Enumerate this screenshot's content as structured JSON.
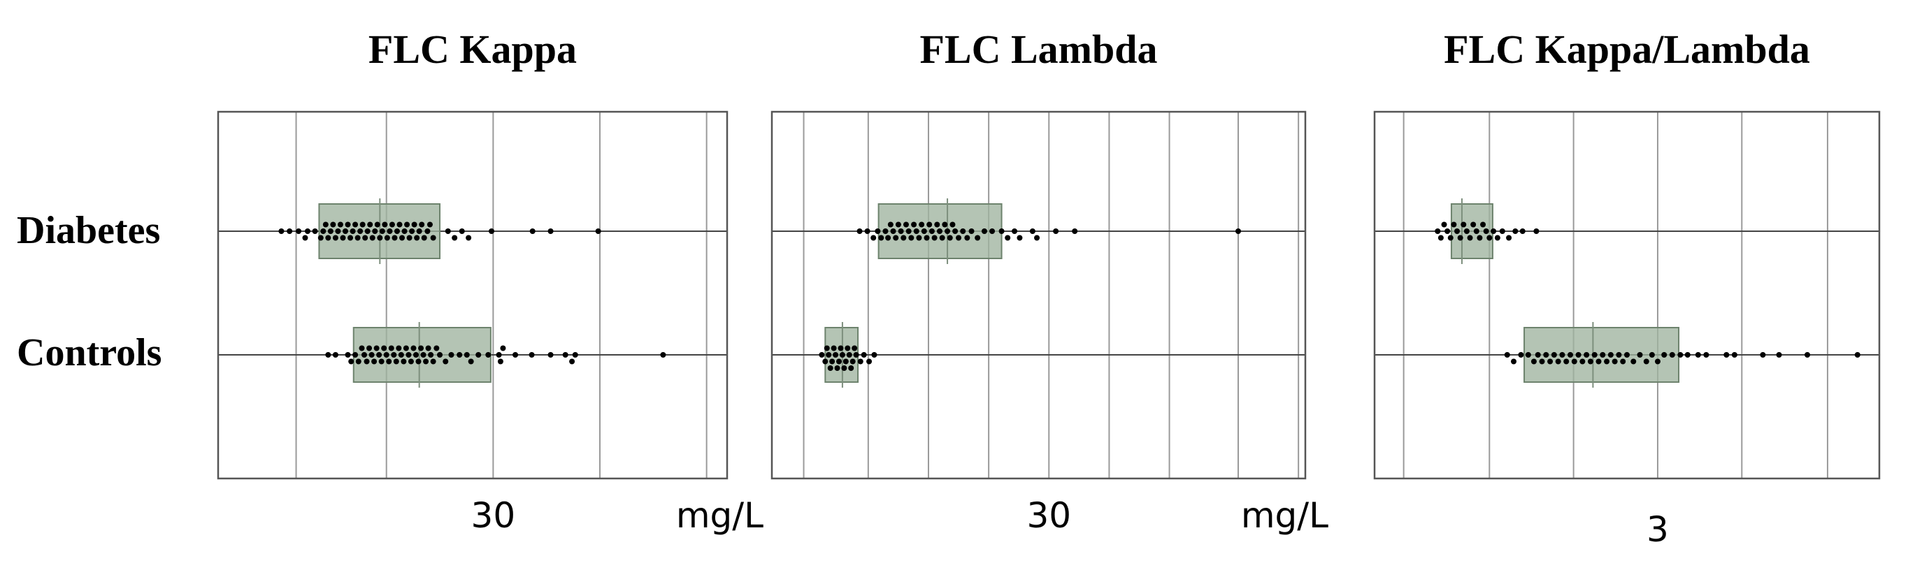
{
  "groups": [
    "Diabetes",
    "Controls"
  ],
  "chart_data": [
    {
      "type": "scatter",
      "title": "FLC Kappa",
      "unit": "mg/L",
      "tick_labels": [
        {
          "value": 30,
          "text": "30"
        }
      ],
      "xlim": [
        -3.5,
        58.5
      ],
      "gridlines": [
        6,
        17,
        30,
        43,
        56
      ],
      "grid": true,
      "series": [
        {
          "name": "Diabetes",
          "q1": 8.8,
          "median": 16.2,
          "q3": 23.5,
          "values": [
            4.2,
            5.2,
            6.3,
            7.1,
            7.4,
            8.3,
            9,
            9.3,
            9.6,
            9.9,
            10.2,
            10.5,
            10.8,
            11.1,
            11.4,
            11.7,
            12,
            12.3,
            12.6,
            12.9,
            13.2,
            13.5,
            13.8,
            14.1,
            14.4,
            14.7,
            15,
            15.3,
            15.6,
            15.9,
            16.2,
            16.5,
            16.8,
            17.1,
            17.4,
            17.7,
            18,
            18.3,
            18.6,
            18.9,
            19.2,
            19.5,
            19.8,
            20.1,
            20.4,
            20.7,
            21,
            21.3,
            21.6,
            22,
            22.3,
            22.7,
            24.5,
            25.3,
            26.2,
            27,
            29.8,
            34.8,
            37,
            42.8
          ]
        },
        {
          "name": "Controls",
          "q1": 13,
          "median": 21,
          "q3": 29.7,
          "values": [
            9.9,
            10.8,
            12.3,
            12.7,
            13.2,
            13.6,
            14,
            14.3,
            14.6,
            14.9,
            15.2,
            15.5,
            15.8,
            16.1,
            16.4,
            16.7,
            17,
            17.3,
            17.6,
            17.9,
            18.2,
            18.5,
            18.8,
            19.1,
            19.4,
            19.7,
            20,
            20.3,
            20.6,
            20.9,
            21.2,
            21.5,
            21.8,
            22.1,
            22.4,
            22.7,
            23.1,
            23.5,
            24.2,
            24.9,
            25.9,
            26.8,
            27.3,
            28.2,
            29.4,
            30.7,
            30.9,
            31.2,
            32.7,
            34.7,
            37,
            38.8,
            39.6,
            40,
            50.7
          ]
        }
      ]
    },
    {
      "type": "scatter",
      "title": "FLC Lambda",
      "unit": "mg/L",
      "tick_labels": [
        {
          "value": 30,
          "text": "30"
        }
      ],
      "xlim": [
        -2.2,
        59.8
      ],
      "gridlines": [
        1.5,
        9,
        16,
        23,
        30,
        37,
        44,
        52,
        59
      ],
      "grid": true,
      "series": [
        {
          "name": "Diabetes",
          "q1": 10.2,
          "median": 18.2,
          "q3": 24.5,
          "values": [
            8,
            8.9,
            9.6,
            10.1,
            10.5,
            11,
            11.3,
            11.6,
            11.9,
            12.2,
            12.5,
            12.8,
            13.1,
            13.4,
            13.7,
            14,
            14.3,
            14.6,
            14.9,
            15.2,
            15.5,
            15.8,
            16.1,
            16.4,
            16.7,
            17,
            17.3,
            17.6,
            17.9,
            18.2,
            18.5,
            18.8,
            19.1,
            19.5,
            20,
            20.5,
            21,
            21.7,
            22.5,
            23.4,
            24.5,
            25.2,
            26,
            26.6,
            28.1,
            28.6,
            30.8,
            33,
            52
          ]
        },
        {
          "name": "Controls",
          "q1": 4,
          "median": 6,
          "q3": 7.8,
          "values": [
            3.6,
            4,
            4.2,
            4.4,
            4.6,
            4.8,
            5,
            5.2,
            5.4,
            5.6,
            5.8,
            6,
            6.2,
            6.4,
            6.6,
            6.8,
            7,
            7.2,
            7.4,
            7.6,
            8.1,
            8.5,
            9.1,
            9.7
          ]
        }
      ]
    },
    {
      "type": "scatter",
      "title": "FLC Kappa/Lambda",
      "unit": "",
      "tick_labels": [
        {
          "value": 3,
          "text": "3"
        }
      ],
      "xlim": [
        -0.5,
        5.74
      ],
      "gridlines": [
        -0.14,
        0.92,
        1.96,
        3,
        4.04,
        5.1,
        5.74
      ],
      "grid": true,
      "series": [
        {
          "name": "Diabetes",
          "q1": 0.45,
          "median": 0.58,
          "q3": 0.96,
          "values": [
            0.28,
            0.32,
            0.36,
            0.4,
            0.44,
            0.48,
            0.52,
            0.56,
            0.6,
            0.64,
            0.68,
            0.72,
            0.76,
            0.8,
            0.84,
            0.88,
            0.92,
            0.97,
            1.02,
            1.08,
            1.16,
            1.24,
            1.33,
            1.5
          ]
        },
        {
          "name": "Controls",
          "q1": 1.35,
          "median": 2.2,
          "q3": 3.26,
          "values": [
            1.14,
            1.22,
            1.31,
            1.4,
            1.47,
            1.52,
            1.57,
            1.62,
            1.67,
            1.72,
            1.77,
            1.82,
            1.87,
            1.92,
            1.97,
            2.02,
            2.07,
            2.12,
            2.17,
            2.22,
            2.27,
            2.32,
            2.37,
            2.42,
            2.47,
            2.52,
            2.57,
            2.62,
            2.7,
            2.78,
            2.86,
            2.93,
            3,
            3.08,
            3.18,
            3.28,
            3.37,
            3.5,
            3.6,
            3.85,
            3.95,
            4.3,
            4.5,
            4.85,
            5.47
          ]
        }
      ]
    }
  ]
}
